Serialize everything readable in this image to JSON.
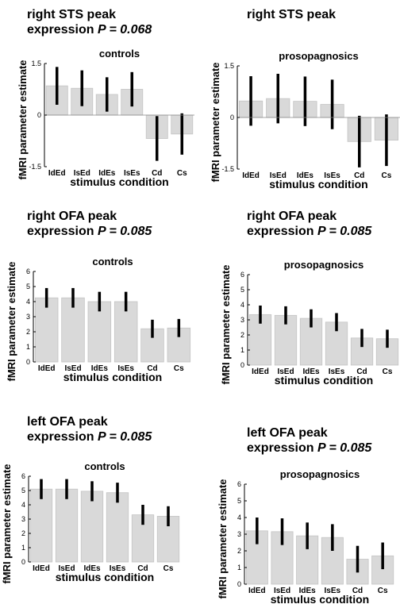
{
  "chart_data": [
    {
      "type": "bar",
      "title_line1": "right STS peak",
      "title_line2_prefix": "expression",
      "title_line2_p": "P = 0.068",
      "subtitle": "controls",
      "xlabel": "stimulus condition",
      "ylabel": "fMRI parameter estimate",
      "categories": [
        "IdEd",
        "IsEd",
        "IdEs",
        "IsEs",
        "Cd",
        "Cs"
      ],
      "values": [
        0.85,
        0.78,
        0.6,
        0.75,
        -0.68,
        -0.55
      ],
      "error": [
        0.55,
        0.52,
        0.5,
        0.5,
        0.65,
        0.6
      ],
      "ylim": [
        -1.5,
        1.5
      ],
      "yticks": [
        -1.5,
        0,
        1.5
      ],
      "yticklabels": [
        "-1.5",
        "0",
        "1.5"
      ],
      "bar_color": "#d9d9d9",
      "error_color": "#000000"
    },
    {
      "type": "bar",
      "title_line1": "right STS peak",
      "title_line2_prefix": "",
      "title_line2_p": "",
      "subtitle": "prosopagnosics",
      "xlabel": "stimulus condition",
      "ylabel": "fMRI parameter estimate",
      "categories": [
        "IdEd",
        "IsEd",
        "IdEs",
        "IsEs",
        "Cd",
        "Cs"
      ],
      "values": [
        0.48,
        0.55,
        0.47,
        0.38,
        -0.7,
        -0.66
      ],
      "error": [
        0.72,
        0.72,
        0.72,
        0.72,
        0.75,
        0.75
      ],
      "ylim": [
        -1.5,
        1.5
      ],
      "yticks": [
        -1.5,
        0,
        1.5
      ],
      "yticklabels": [
        "-1.5",
        "0",
        "1.5"
      ],
      "bar_color": "#d9d9d9",
      "error_color": "#000000"
    },
    {
      "type": "bar",
      "title_line1": "right OFA peak",
      "title_line2_prefix": "expression",
      "title_line2_p": "P = 0.085",
      "subtitle": "controls",
      "xlabel": "stimulus condition",
      "ylabel": "fMRI parameter estimate",
      "categories": [
        "IdEd",
        "IsEd",
        "IdEs",
        "IsEs",
        "Cd",
        "Cs"
      ],
      "values": [
        4.25,
        4.25,
        4.0,
        4.0,
        2.2,
        2.25
      ],
      "error": [
        0.65,
        0.65,
        0.65,
        0.65,
        0.6,
        0.6
      ],
      "ylim": [
        0,
        6
      ],
      "yticks": [
        0,
        1,
        2,
        3,
        4,
        5,
        6
      ],
      "yticklabels": [
        "0",
        "1",
        "2",
        "3",
        "4",
        "5",
        "6"
      ],
      "bar_color": "#d9d9d9",
      "error_color": "#000000"
    },
    {
      "type": "bar",
      "title_line1": "right OFA peak",
      "title_line2_prefix": "expression",
      "title_line2_p": "P = 0.085",
      "subtitle": "prosopagnosics",
      "xlabel": "stimulus condition",
      "ylabel": "fMRI parameter estimate",
      "categories": [
        "IdEd",
        "IsEd",
        "IdEs",
        "IsEs",
        "Cd",
        "Cs"
      ],
      "values": [
        3.35,
        3.3,
        3.1,
        2.85,
        1.8,
        1.75
      ],
      "error": [
        0.6,
        0.6,
        0.6,
        0.6,
        0.6,
        0.6
      ],
      "ylim": [
        0,
        6
      ],
      "yticks": [
        0,
        1,
        2,
        3,
        4,
        5,
        6
      ],
      "yticklabels": [
        "0",
        "1",
        "2",
        "3",
        "4",
        "5",
        "6"
      ],
      "bar_color": "#d9d9d9",
      "error_color": "#000000"
    },
    {
      "type": "bar",
      "title_line1": "left OFA peak",
      "title_line2_prefix": "expression",
      "title_line2_p": "P = 0.085",
      "subtitle": "controls",
      "xlabel": "stimulus condition",
      "ylabel": "fMRI parameter estimate",
      "categories": [
        "IdEd",
        "IsEd",
        "IdEs",
        "IsEs",
        "Cd",
        "Cs"
      ],
      "values": [
        5.1,
        5.1,
        4.95,
        4.85,
        3.3,
        3.2
      ],
      "error": [
        0.7,
        0.7,
        0.7,
        0.7,
        0.7,
        0.7
      ],
      "ylim": [
        0,
        6
      ],
      "yticks": [
        0,
        1,
        2,
        3,
        4,
        5,
        6
      ],
      "yticklabels": [
        "0",
        "1",
        "2",
        "3",
        "4",
        "5",
        "6"
      ],
      "bar_color": "#d9d9d9",
      "error_color": "#000000"
    },
    {
      "type": "bar",
      "title_line1": "left OFA peak",
      "title_line2_prefix": "expression",
      "title_line2_p": "P = 0.085",
      "subtitle": "prosopagnosics",
      "xlabel": "stimulus condition",
      "ylabel": "fMRI parameter estimate",
      "categories": [
        "IdEd",
        "IsEd",
        "IdEs",
        "IsEs",
        "Cd",
        "Cs"
      ],
      "values": [
        3.2,
        3.15,
        2.9,
        2.8,
        1.5,
        1.7
      ],
      "error": [
        0.8,
        0.8,
        0.8,
        0.8,
        0.8,
        0.8
      ],
      "ylim": [
        0,
        6
      ],
      "yticks": [
        0,
        1,
        2,
        3,
        4,
        5,
        6
      ],
      "yticklabels": [
        "0",
        "1",
        "2",
        "3",
        "4",
        "5",
        "6"
      ],
      "bar_color": "#d9d9d9",
      "error_color": "#000000"
    }
  ]
}
